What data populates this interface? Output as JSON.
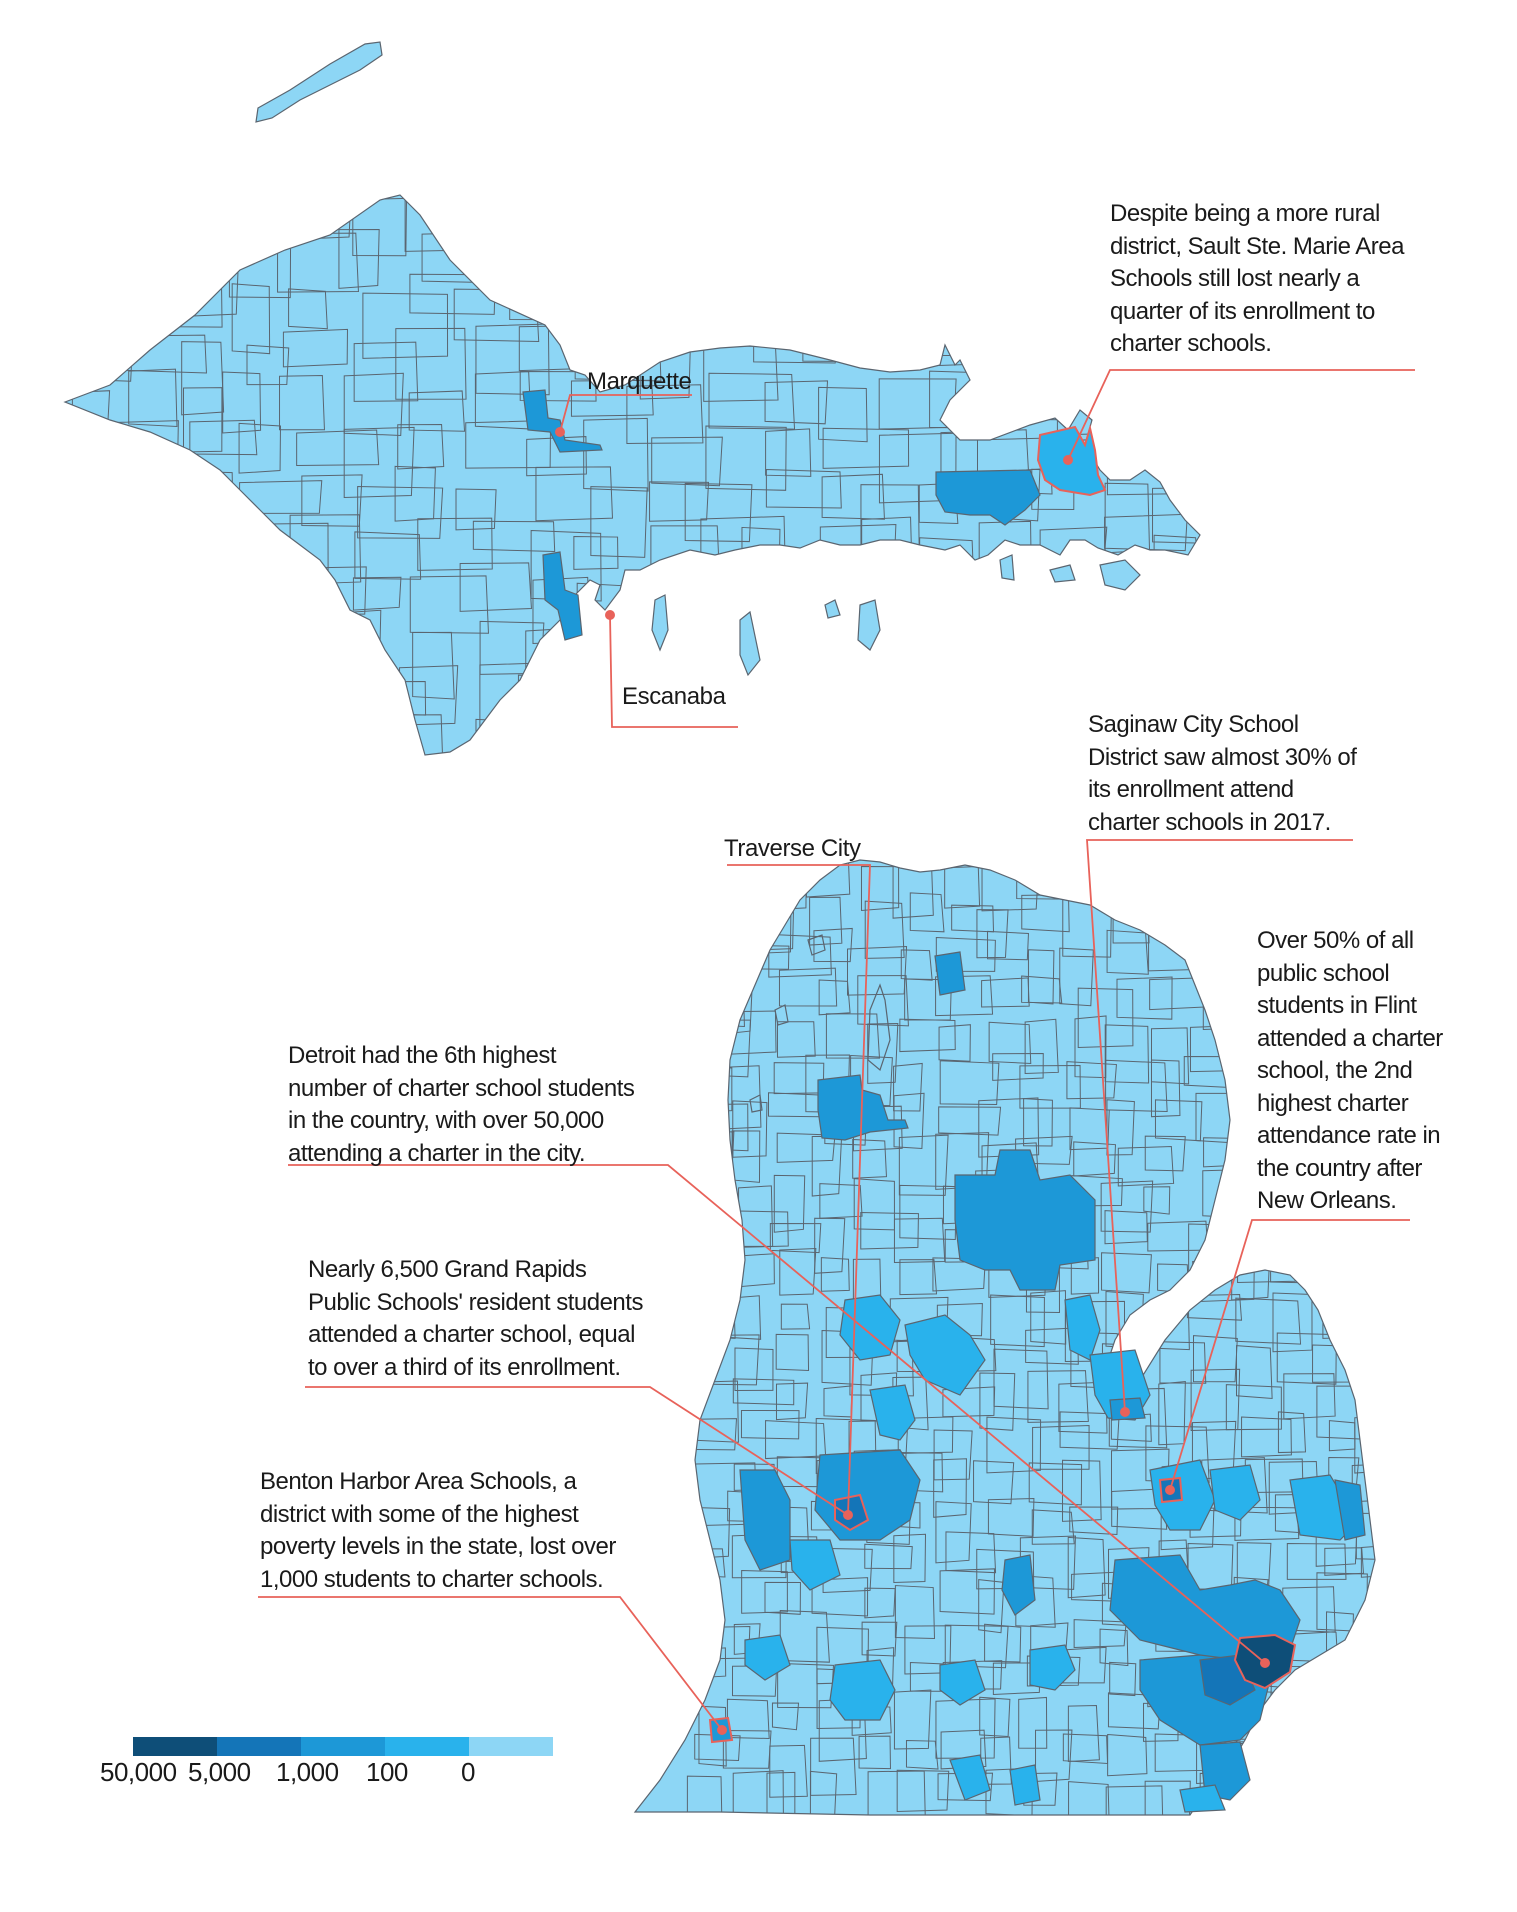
{
  "colors": {
    "bin_0": "#8dd6f5",
    "bin_100": "#29b2ec",
    "bin_1000": "#1d98d7",
    "bin_5000": "#1475b8",
    "bin_50000": "#0e4e78",
    "border": "#5a6570",
    "callout": "#e8625a"
  },
  "cities": {
    "marquette": "Marquette",
    "escanaba": "Escanaba",
    "traverse": "Traverse City"
  },
  "annotations": {
    "sault": [
      "Despite being a more rural",
      "district, Sault Ste. Marie Area",
      "Schools still lost nearly a",
      "quarter of its enrollment to",
      "charter schools."
    ],
    "saginaw": [
      "Saginaw City School",
      "District saw almost 30% of",
      "its enrollment attend",
      "charter schools in 2017."
    ],
    "flint": [
      "Over 50% of all",
      "public school",
      "students in Flint",
      "attended a charter",
      "school, the 2nd",
      "highest charter",
      "attendance rate in",
      "the country after",
      "New Orleans."
    ],
    "detroit": [
      "Detroit had the 6th highest",
      "number of charter school students",
      "in the country, with over 50,000",
      "attending a charter in the city."
    ],
    "grand_rapids": [
      "Nearly 6,500 Grand Rapids",
      "Public Schools' resident students",
      "attended a charter school, equal",
      "to over a third of its enrollment."
    ],
    "benton": [
      "Benton Harbor Area Schools, a",
      "district with some of the highest",
      "poverty levels in the state, lost over",
      "1,000 students to charter schools."
    ]
  },
  "legend": {
    "values": [
      "50,000",
      "5,000",
      "1,000",
      "100",
      "0"
    ]
  }
}
